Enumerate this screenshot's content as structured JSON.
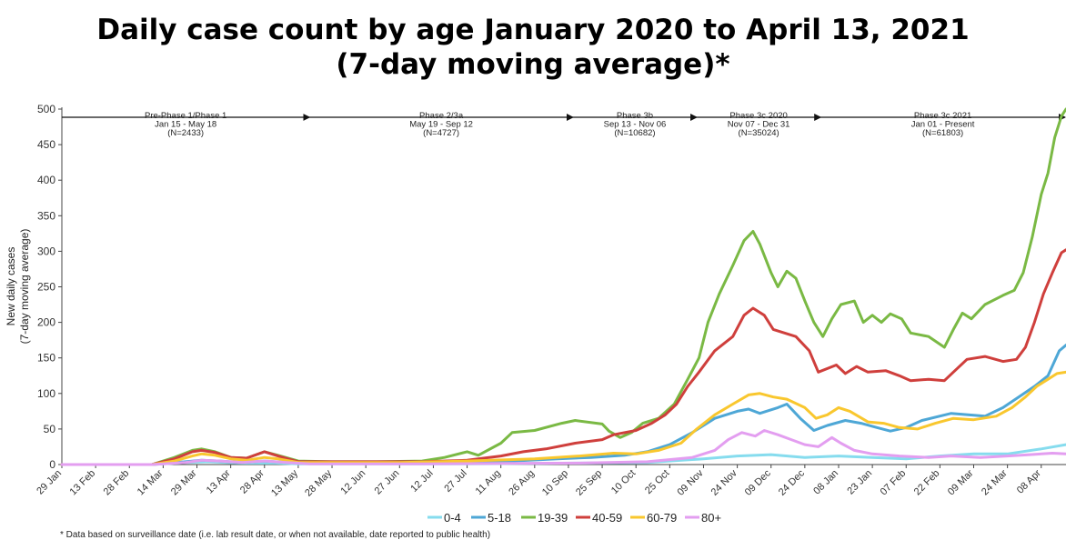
{
  "chart_data": {
    "type": "line",
    "title": "Daily case count by age January 2020 to April 13, 2021",
    "subtitle": "(7-day moving average)*",
    "ylabel_lines": [
      "New daily cases",
      "(7-day moving average)"
    ],
    "ylim": [
      0,
      500
    ],
    "yticks": [
      0,
      50,
      100,
      150,
      200,
      250,
      300,
      350,
      400,
      450,
      500
    ],
    "xlim": [
      0,
      446
    ],
    "x_tick_labels": [
      {
        "label": "29 Jan",
        "day": 0
      },
      {
        "label": "13 Feb",
        "day": 15
      },
      {
        "label": "28 Feb",
        "day": 30
      },
      {
        "label": "14 Mar",
        "day": 45
      },
      {
        "label": "29 Mar",
        "day": 60
      },
      {
        "label": "13 Apr",
        "day": 75
      },
      {
        "label": "28 Apr",
        "day": 90
      },
      {
        "label": "13 May",
        "day": 105
      },
      {
        "label": "28 May",
        "day": 120
      },
      {
        "label": "12 Jun",
        "day": 135
      },
      {
        "label": "27 Jun",
        "day": 150
      },
      {
        "label": "12 Jul",
        "day": 165
      },
      {
        "label": "27 Jul",
        "day": 180
      },
      {
        "label": "11 Aug",
        "day": 195
      },
      {
        "label": "26 Aug",
        "day": 210
      },
      {
        "label": "10 Sep",
        "day": 225
      },
      {
        "label": "25 Sep",
        "day": 240
      },
      {
        "label": "10 Oct",
        "day": 255
      },
      {
        "label": "25 Oct",
        "day": 270
      },
      {
        "label": "09 Nov",
        "day": 285
      },
      {
        "label": "24 Nov",
        "day": 300
      },
      {
        "label": "09 Dec",
        "day": 315
      },
      {
        "label": "24 Dec",
        "day": 330
      },
      {
        "label": "08 Jan",
        "day": 345
      },
      {
        "label": "23 Jan",
        "day": 360
      },
      {
        "label": "07 Feb",
        "day": 375
      },
      {
        "label": "22 Feb",
        "day": 390
      },
      {
        "label": "09 Mar",
        "day": 405
      },
      {
        "label": "24 Mar",
        "day": 420
      },
      {
        "label": "08 Apr",
        "day": 435
      }
    ],
    "grid": false,
    "legend_position": "bottom",
    "phases": [
      {
        "name": "Pre-Phase 1/Phase 1",
        "dates": "Jan 15 - May 18",
        "n": "(N=2433)",
        "end_day": 110
      },
      {
        "name": "Phase 2/3a",
        "dates": "May 19 - Sep 12",
        "n": "(N=4727)",
        "end_day": 227
      },
      {
        "name": "Phase 3b",
        "dates": "Sep 13 - Nov 06",
        "n": "(N=10682)",
        "end_day": 282
      },
      {
        "name": "Phase 3c 2020",
        "dates": "Nov 07 - Dec 31",
        "n": "(N=35024)",
        "end_day": 337
      },
      {
        "name": "Phase 3c 2021",
        "dates": "Jan 01 - Present",
        "n": "(N=61803)",
        "end_day": 446
      }
    ],
    "series": [
      {
        "name": "0-4",
        "color": "#86dcee",
        "points": [
          [
            0,
            0
          ],
          [
            40,
            0
          ],
          [
            55,
            3
          ],
          [
            65,
            4
          ],
          [
            80,
            2
          ],
          [
            95,
            2
          ],
          [
            105,
            1
          ],
          [
            130,
            1
          ],
          [
            180,
            1
          ],
          [
            230,
            2
          ],
          [
            260,
            3
          ],
          [
            285,
            8
          ],
          [
            300,
            12
          ],
          [
            315,
            14
          ],
          [
            330,
            10
          ],
          [
            345,
            12
          ],
          [
            360,
            10
          ],
          [
            375,
            8
          ],
          [
            390,
            12
          ],
          [
            405,
            15
          ],
          [
            420,
            15
          ],
          [
            435,
            22
          ],
          [
            446,
            28
          ]
        ]
      },
      {
        "name": "5-18",
        "color": "#4ea7d6",
        "points": [
          [
            0,
            0
          ],
          [
            40,
            0
          ],
          [
            55,
            4
          ],
          [
            62,
            6
          ],
          [
            70,
            5
          ],
          [
            80,
            3
          ],
          [
            90,
            5
          ],
          [
            100,
            3
          ],
          [
            110,
            2
          ],
          [
            140,
            2
          ],
          [
            170,
            2
          ],
          [
            200,
            5
          ],
          [
            220,
            8
          ],
          [
            235,
            10
          ],
          [
            250,
            13
          ],
          [
            260,
            18
          ],
          [
            270,
            28
          ],
          [
            280,
            45
          ],
          [
            290,
            65
          ],
          [
            300,
            75
          ],
          [
            305,
            78
          ],
          [
            310,
            72
          ],
          [
            318,
            80
          ],
          [
            322,
            85
          ],
          [
            328,
            65
          ],
          [
            334,
            48
          ],
          [
            340,
            55
          ],
          [
            348,
            62
          ],
          [
            355,
            58
          ],
          [
            362,
            52
          ],
          [
            368,
            47
          ],
          [
            375,
            52
          ],
          [
            382,
            62
          ],
          [
            395,
            72
          ],
          [
            410,
            68
          ],
          [
            418,
            80
          ],
          [
            425,
            95
          ],
          [
            432,
            110
          ],
          [
            438,
            125
          ],
          [
            443,
            160
          ],
          [
            446,
            168
          ]
        ]
      },
      {
        "name": "19-39",
        "color": "#7ab944",
        "points": [
          [
            0,
            0
          ],
          [
            40,
            0
          ],
          [
            50,
            10
          ],
          [
            58,
            20
          ],
          [
            62,
            22
          ],
          [
            68,
            18
          ],
          [
            75,
            10
          ],
          [
            82,
            9
          ],
          [
            90,
            18
          ],
          [
            96,
            13
          ],
          [
            105,
            5
          ],
          [
            120,
            4
          ],
          [
            140,
            4
          ],
          [
            160,
            5
          ],
          [
            170,
            10
          ],
          [
            180,
            18
          ],
          [
            185,
            13
          ],
          [
            195,
            30
          ],
          [
            200,
            45
          ],
          [
            210,
            48
          ],
          [
            222,
            58
          ],
          [
            228,
            62
          ],
          [
            240,
            57
          ],
          [
            243,
            47
          ],
          [
            248,
            38
          ],
          [
            253,
            45
          ],
          [
            258,
            58
          ],
          [
            265,
            65
          ],
          [
            272,
            85
          ],
          [
            278,
            120
          ],
          [
            283,
            150
          ],
          [
            287,
            200
          ],
          [
            292,
            240
          ],
          [
            298,
            280
          ],
          [
            303,
            315
          ],
          [
            307,
            328
          ],
          [
            310,
            310
          ],
          [
            315,
            270
          ],
          [
            318,
            250
          ],
          [
            322,
            272
          ],
          [
            326,
            262
          ],
          [
            330,
            230
          ],
          [
            334,
            200
          ],
          [
            338,
            180
          ],
          [
            342,
            205
          ],
          [
            346,
            225
          ],
          [
            352,
            230
          ],
          [
            356,
            200
          ],
          [
            360,
            210
          ],
          [
            364,
            200
          ],
          [
            368,
            212
          ],
          [
            373,
            205
          ],
          [
            377,
            185
          ],
          [
            385,
            180
          ],
          [
            392,
            165
          ],
          [
            396,
            190
          ],
          [
            400,
            213
          ],
          [
            404,
            205
          ],
          [
            410,
            225
          ],
          [
            418,
            238
          ],
          [
            423,
            245
          ],
          [
            427,
            270
          ],
          [
            431,
            320
          ],
          [
            435,
            380
          ],
          [
            438,
            410
          ],
          [
            441,
            460
          ],
          [
            444,
            490
          ],
          [
            446,
            500
          ]
        ]
      },
      {
        "name": "40-59",
        "color": "#cf3f3c",
        "points": [
          [
            0,
            0
          ],
          [
            40,
            0
          ],
          [
            50,
            8
          ],
          [
            58,
            18
          ],
          [
            62,
            20
          ],
          [
            68,
            17
          ],
          [
            75,
            10
          ],
          [
            82,
            9
          ],
          [
            90,
            18
          ],
          [
            96,
            12
          ],
          [
            105,
            4
          ],
          [
            130,
            4
          ],
          [
            160,
            4
          ],
          [
            180,
            6
          ],
          [
            195,
            12
          ],
          [
            205,
            18
          ],
          [
            215,
            22
          ],
          [
            228,
            30
          ],
          [
            240,
            35
          ],
          [
            245,
            42
          ],
          [
            255,
            48
          ],
          [
            262,
            58
          ],
          [
            268,
            70
          ],
          [
            273,
            85
          ],
          [
            278,
            110
          ],
          [
            283,
            130
          ],
          [
            290,
            160
          ],
          [
            298,
            180
          ],
          [
            303,
            210
          ],
          [
            307,
            220
          ],
          [
            312,
            210
          ],
          [
            316,
            190
          ],
          [
            326,
            180
          ],
          [
            332,
            160
          ],
          [
            336,
            130
          ],
          [
            344,
            140
          ],
          [
            348,
            128
          ],
          [
            353,
            138
          ],
          [
            358,
            130
          ],
          [
            366,
            132
          ],
          [
            372,
            125
          ],
          [
            377,
            118
          ],
          [
            385,
            120
          ],
          [
            392,
            118
          ],
          [
            396,
            130
          ],
          [
            402,
            148
          ],
          [
            410,
            152
          ],
          [
            418,
            145
          ],
          [
            424,
            148
          ],
          [
            428,
            165
          ],
          [
            432,
            200
          ],
          [
            436,
            240
          ],
          [
            440,
            270
          ],
          [
            444,
            298
          ],
          [
            446,
            302
          ]
        ]
      },
      {
        "name": "60-79",
        "color": "#f9c72e",
        "points": [
          [
            0,
            0
          ],
          [
            40,
            0
          ],
          [
            50,
            5
          ],
          [
            58,
            12
          ],
          [
            62,
            15
          ],
          [
            68,
            13
          ],
          [
            75,
            8
          ],
          [
            82,
            6
          ],
          [
            90,
            10
          ],
          [
            96,
            8
          ],
          [
            105,
            3
          ],
          [
            150,
            3
          ],
          [
            180,
            5
          ],
          [
            210,
            8
          ],
          [
            230,
            12
          ],
          [
            245,
            16
          ],
          [
            255,
            15
          ],
          [
            265,
            20
          ],
          [
            275,
            30
          ],
          [
            282,
            50
          ],
          [
            290,
            70
          ],
          [
            298,
            85
          ],
          [
            305,
            98
          ],
          [
            310,
            100
          ],
          [
            316,
            95
          ],
          [
            322,
            92
          ],
          [
            330,
            80
          ],
          [
            335,
            65
          ],
          [
            340,
            70
          ],
          [
            345,
            80
          ],
          [
            350,
            75
          ],
          [
            358,
            60
          ],
          [
            365,
            58
          ],
          [
            372,
            52
          ],
          [
            380,
            50
          ],
          [
            388,
            58
          ],
          [
            396,
            65
          ],
          [
            405,
            63
          ],
          [
            415,
            68
          ],
          [
            422,
            80
          ],
          [
            428,
            95
          ],
          [
            433,
            110
          ],
          [
            438,
            120
          ],
          [
            442,
            128
          ],
          [
            446,
            130
          ]
        ]
      },
      {
        "name": "80+",
        "color": "#e39ef0",
        "points": [
          [
            0,
            0
          ],
          [
            40,
            0
          ],
          [
            55,
            3
          ],
          [
            62,
            6
          ],
          [
            70,
            5
          ],
          [
            80,
            3
          ],
          [
            90,
            5
          ],
          [
            100,
            3
          ],
          [
            110,
            1
          ],
          [
            160,
            1
          ],
          [
            230,
            2
          ],
          [
            260,
            4
          ],
          [
            280,
            10
          ],
          [
            290,
            20
          ],
          [
            296,
            35
          ],
          [
            302,
            45
          ],
          [
            308,
            40
          ],
          [
            312,
            48
          ],
          [
            318,
            42
          ],
          [
            324,
            35
          ],
          [
            330,
            28
          ],
          [
            336,
            25
          ],
          [
            342,
            38
          ],
          [
            346,
            30
          ],
          [
            352,
            20
          ],
          [
            360,
            15
          ],
          [
            372,
            12
          ],
          [
            385,
            10
          ],
          [
            395,
            12
          ],
          [
            408,
            10
          ],
          [
            420,
            12
          ],
          [
            430,
            14
          ],
          [
            440,
            16
          ],
          [
            446,
            15
          ]
        ]
      }
    ],
    "footnote": "* Data based on surveillance date (i.e. lab result date, or when not available, date reported to public health)"
  }
}
